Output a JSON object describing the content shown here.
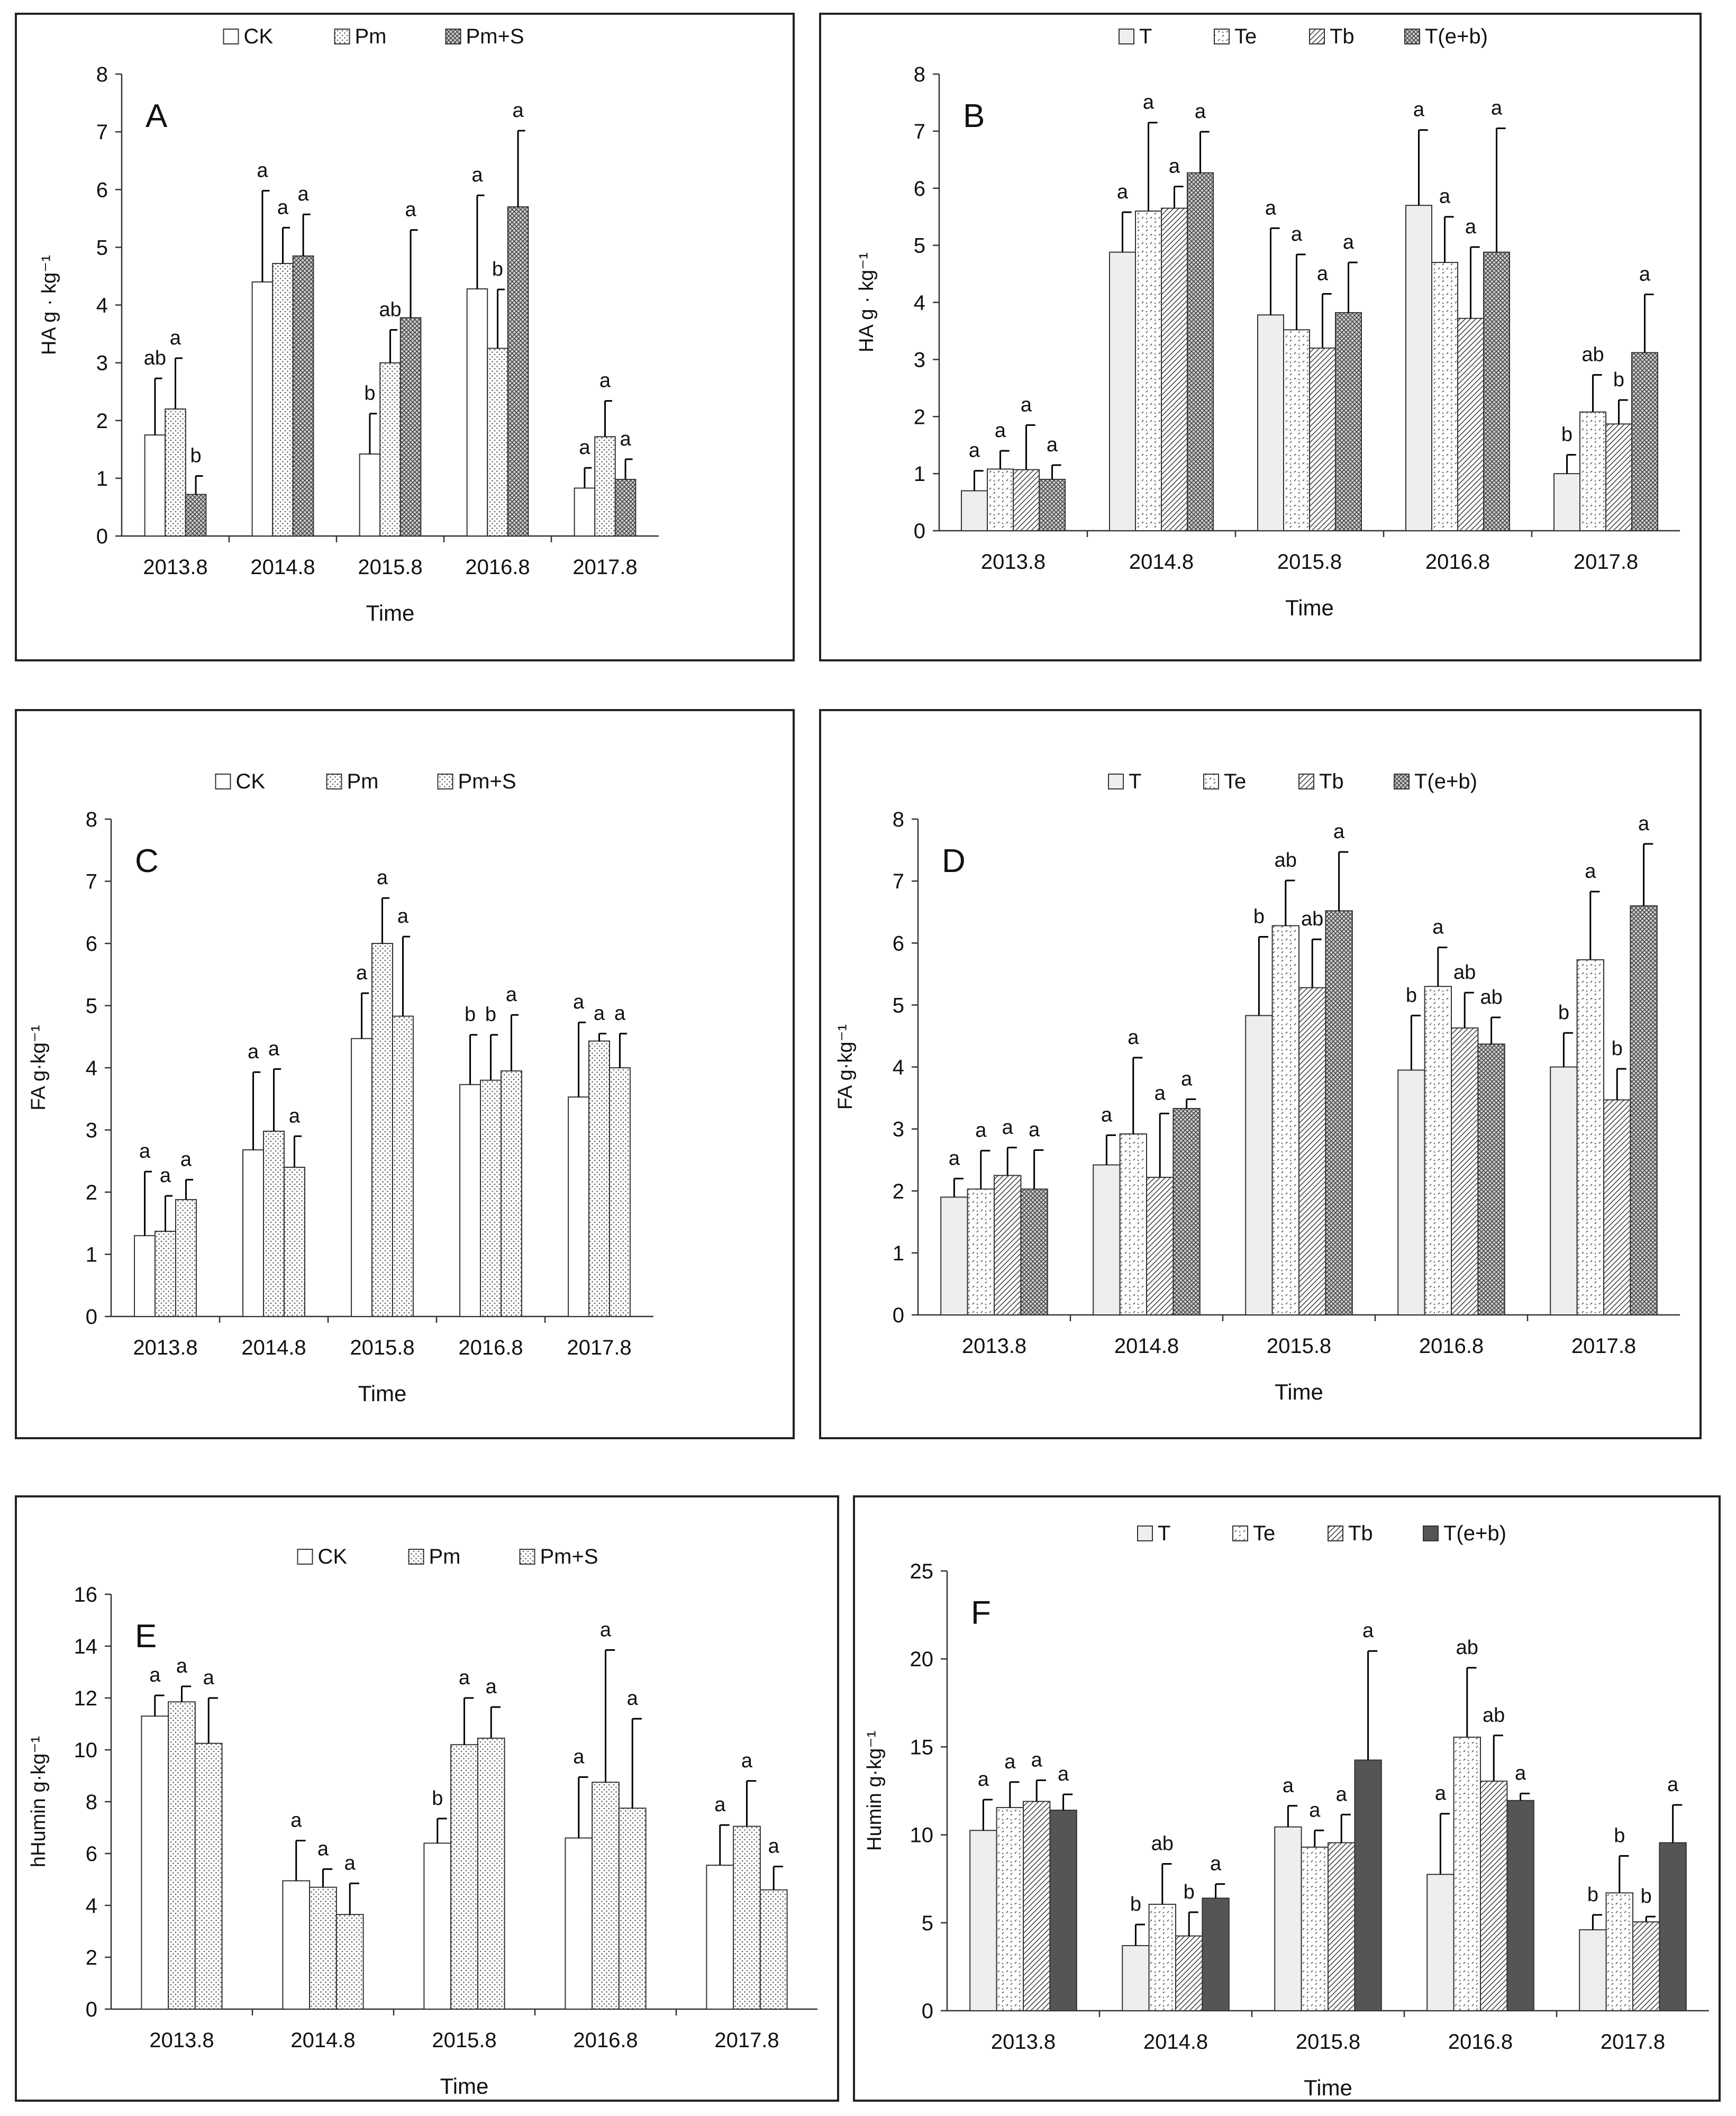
{
  "colors": {
    "frame": "#222222",
    "bar_stroke": "#333333",
    "ck_fill": "#ffffff",
    "t_fill": "#eeeeee",
    "dark_fill": "#555555",
    "error": "#000000"
  },
  "chart_data": [
    {
      "id": "A",
      "letter": "A",
      "type": "bar",
      "title": "",
      "xlabel": "Time",
      "ylabel": "HA  g · kg⁻¹",
      "ylim": [
        0,
        8
      ],
      "yticks": [
        0,
        1,
        2,
        3,
        4,
        5,
        6,
        7,
        8
      ],
      "categories": [
        "2013.8",
        "2014.8",
        "2015.8",
        "2016.8",
        "2017.8"
      ],
      "series": [
        {
          "name": "CK",
          "pattern": "white",
          "values": [
            1.75,
            4.4,
            1.42,
            4.28,
            0.83
          ],
          "errors": [
            0.98,
            1.58,
            0.7,
            1.62,
            0.35
          ],
          "sig": [
            "ab",
            "a",
            "b",
            "a",
            "a"
          ]
        },
        {
          "name": "Pm",
          "pattern": "dots",
          "values": [
            2.2,
            4.72,
            3.0,
            3.25,
            1.72
          ],
          "errors": [
            0.88,
            0.62,
            0.57,
            1.02,
            0.62
          ],
          "sig": [
            "a",
            "a",
            "ab",
            "b",
            "a"
          ]
        },
        {
          "name": "Pm+S",
          "pattern": "cross",
          "values": [
            0.72,
            4.85,
            3.78,
            5.7,
            0.98
          ],
          "errors": [
            0.32,
            0.72,
            1.52,
            1.32,
            0.35
          ],
          "sig": [
            "b",
            "a",
            "a",
            "a",
            "a"
          ]
        }
      ]
    },
    {
      "id": "B",
      "letter": "B",
      "type": "bar",
      "title": "",
      "xlabel": "Time",
      "ylabel": "HA  g · kg⁻¹",
      "ylim": [
        0,
        8
      ],
      "yticks": [
        0,
        1,
        2,
        3,
        4,
        5,
        6,
        7,
        8
      ],
      "categories": [
        "2013.8",
        "2014.8",
        "2015.8",
        "2016.8",
        "2017.8"
      ],
      "series": [
        {
          "name": "T",
          "pattern": "light",
          "values": [
            0.7,
            4.88,
            3.78,
            5.7,
            1.0
          ],
          "errors": [
            0.35,
            0.7,
            1.52,
            1.32,
            0.33
          ],
          "sig": [
            "a",
            "a",
            "a",
            "a",
            "b"
          ]
        },
        {
          "name": "Te",
          "pattern": "marks",
          "values": [
            1.08,
            5.6,
            3.52,
            4.7,
            2.08
          ],
          "errors": [
            0.32,
            1.55,
            1.32,
            0.8,
            0.65
          ],
          "sig": [
            "a",
            "a",
            "a",
            "a",
            "ab"
          ]
        },
        {
          "name": "Tb",
          "pattern": "diag",
          "values": [
            1.07,
            5.65,
            3.2,
            3.72,
            1.87
          ],
          "errors": [
            0.78,
            0.38,
            0.95,
            1.25,
            0.42
          ],
          "sig": [
            "a",
            "a",
            "a",
            "a",
            "b"
          ]
        },
        {
          "name": "T(e+b)",
          "pattern": "cross",
          "values": [
            0.9,
            6.27,
            3.82,
            4.88,
            3.12
          ],
          "errors": [
            0.25,
            0.72,
            0.88,
            2.17,
            1.02
          ],
          "sig": [
            "a",
            "a",
            "a",
            "a",
            "a"
          ]
        }
      ]
    },
    {
      "id": "C",
      "letter": "C",
      "type": "bar",
      "title": "",
      "xlabel": "Time",
      "ylabel": "FA  g·kg⁻¹",
      "ylim": [
        0,
        8
      ],
      "yticks": [
        0,
        1,
        2,
        3,
        4,
        5,
        6,
        7,
        8
      ],
      "categories": [
        "2013.8",
        "2014.8",
        "2015.8",
        "2016.8",
        "2017.8"
      ],
      "series": [
        {
          "name": "CK",
          "pattern": "white",
          "values": [
            1.3,
            2.68,
            4.47,
            3.73,
            3.53
          ],
          "errors": [
            1.03,
            1.25,
            0.73,
            0.8,
            1.2
          ],
          "sig": [
            "a",
            "a",
            "a",
            "b",
            "a"
          ]
        },
        {
          "name": "Pm",
          "pattern": "dots",
          "values": [
            1.37,
            2.98,
            6.0,
            3.8,
            4.43
          ],
          "errors": [
            0.57,
            1.0,
            0.73,
            0.73,
            0.12
          ],
          "sig": [
            "a",
            "a",
            "a",
            "b",
            "a"
          ]
        },
        {
          "name": "Pm+S",
          "pattern": "dots",
          "values": [
            1.88,
            2.4,
            4.83,
            3.95,
            4.0
          ],
          "errors": [
            0.32,
            0.5,
            1.28,
            0.9,
            0.55
          ],
          "sig": [
            "a",
            "a",
            "a",
            "a",
            "a"
          ]
        }
      ]
    },
    {
      "id": "D",
      "letter": "D",
      "type": "bar",
      "title": "",
      "xlabel": "Time",
      "ylabel": "FA  g·kg⁻¹",
      "ylim": [
        0,
        8
      ],
      "yticks": [
        0,
        1,
        2,
        3,
        4,
        5,
        6,
        7,
        8
      ],
      "categories": [
        "2013.8",
        "2014.8",
        "2015.8",
        "2016.8",
        "2017.8"
      ],
      "series": [
        {
          "name": "T",
          "pattern": "light",
          "values": [
            1.9,
            2.42,
            4.83,
            3.95,
            4.0
          ],
          "errors": [
            0.3,
            0.48,
            1.27,
            0.88,
            0.55
          ],
          "sig": [
            "a",
            "a",
            "b",
            "b",
            "b"
          ]
        },
        {
          "name": "Te",
          "pattern": "marks",
          "values": [
            2.03,
            2.92,
            6.28,
            5.3,
            5.73
          ],
          "errors": [
            0.62,
            1.23,
            0.73,
            0.63,
            1.1
          ],
          "sig": [
            "a",
            "a",
            "ab",
            "a",
            "a"
          ]
        },
        {
          "name": "Tb",
          "pattern": "diag",
          "values": [
            2.25,
            2.22,
            5.28,
            4.63,
            3.47
          ],
          "errors": [
            0.45,
            1.03,
            0.78,
            0.57,
            0.5
          ],
          "sig": [
            "a",
            "a",
            "ab",
            "ab",
            "b"
          ]
        },
        {
          "name": "T(e+b)",
          "pattern": "cross",
          "values": [
            2.03,
            3.33,
            6.52,
            4.37,
            6.6
          ],
          "errors": [
            0.63,
            0.15,
            0.95,
            0.43,
            1.0
          ],
          "sig": [
            "a",
            "a",
            "a",
            "ab",
            "a"
          ]
        }
      ]
    },
    {
      "id": "E",
      "letter": "E",
      "type": "bar",
      "title": "",
      "xlabel": "Time",
      "ylabel": "hHumin  g·kg⁻¹",
      "ylim": [
        0,
        16
      ],
      "yticks": [
        0,
        2,
        4,
        6,
        8,
        10,
        12,
        14,
        16
      ],
      "categories": [
        "2013.8",
        "2014.8",
        "2015.8",
        "2016.8",
        "2017.8"
      ],
      "series": [
        {
          "name": "CK",
          "pattern": "white",
          "values": [
            11.3,
            4.95,
            6.4,
            6.6,
            5.55
          ],
          "errors": [
            0.8,
            1.55,
            0.95,
            2.35,
            1.55
          ],
          "sig": [
            "a",
            "a",
            "b",
            "a",
            "a"
          ]
        },
        {
          "name": "Pm",
          "pattern": "dots",
          "values": [
            11.85,
            4.7,
            10.2,
            8.75,
            7.05
          ],
          "errors": [
            0.6,
            0.7,
            1.8,
            5.1,
            1.75
          ],
          "sig": [
            "a",
            "a",
            "a",
            "a",
            "a"
          ]
        },
        {
          "name": "Pm+S",
          "pattern": "dots",
          "values": [
            10.25,
            3.65,
            10.45,
            7.75,
            4.6
          ],
          "errors": [
            1.75,
            1.2,
            1.2,
            3.45,
            0.9
          ],
          "sig": [
            "a",
            "a",
            "a",
            "a",
            "a"
          ]
        }
      ]
    },
    {
      "id": "F",
      "letter": "F",
      "type": "bar",
      "title": "",
      "xlabel": "Time",
      "ylabel": "Humin g·kg⁻¹",
      "ylim": [
        0,
        25
      ],
      "yticks": [
        0,
        5,
        10,
        15,
        20,
        25
      ],
      "categories": [
        "2013.8",
        "2014.8",
        "2015.8",
        "2016.8",
        "2017.8"
      ],
      "series": [
        {
          "name": "T",
          "pattern": "light",
          "values": [
            10.25,
            3.7,
            10.45,
            7.75,
            4.6
          ],
          "errors": [
            1.75,
            1.2,
            1.2,
            3.45,
            0.85
          ],
          "sig": [
            "a",
            "b",
            "a",
            "a",
            "b"
          ]
        },
        {
          "name": "Te",
          "pattern": "marks",
          "values": [
            11.55,
            6.05,
            9.3,
            15.55,
            6.7
          ],
          "errors": [
            1.45,
            2.3,
            0.95,
            3.95,
            2.1
          ],
          "sig": [
            "a",
            "ab",
            "a",
            "ab",
            "b"
          ]
        },
        {
          "name": "Tb",
          "pattern": "diag",
          "values": [
            11.9,
            4.25,
            9.55,
            13.05,
            5.05
          ],
          "errors": [
            1.2,
            1.35,
            1.6,
            2.6,
            0.3
          ],
          "sig": [
            "a",
            "b",
            "a",
            "ab",
            "b"
          ]
        },
        {
          "name": "T(e+b)",
          "pattern": "dark",
          "values": [
            11.4,
            6.4,
            14.25,
            11.95,
            9.55
          ],
          "errors": [
            0.9,
            0.8,
            6.2,
            0.4,
            2.15
          ],
          "sig": [
            "a",
            "a",
            "a",
            "a",
            "a"
          ]
        }
      ]
    }
  ]
}
